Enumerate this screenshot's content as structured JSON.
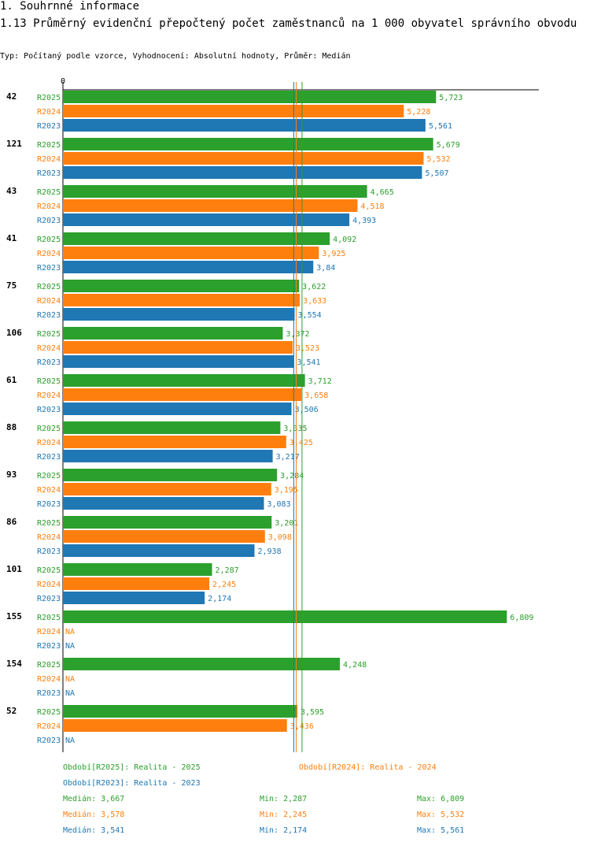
{
  "header": {
    "section": "1. Souhrnné informace",
    "title": "1.13 Průměrný evidenční přepočtený počet zaměstnanců na 1 000 obyvatel správního obvodu",
    "subtitle": "Typ: Počítaný podle vzorce, Vyhodnocení: Absolutní hodnoty, Průměr: Medián"
  },
  "chart_data": {
    "type": "bar",
    "orientation": "horizontal",
    "axis_zero_label": "0",
    "xlim": [
      0,
      7.3
    ],
    "categories": [
      "42",
      "121",
      "43",
      "41",
      "75",
      "106",
      "61",
      "88",
      "93",
      "86",
      "101",
      "155",
      "154",
      "52"
    ],
    "missing_label": "NA",
    "series": [
      {
        "name": "R2025",
        "color": "#2ca02c",
        "values": [
          5.723,
          5.679,
          4.665,
          4.092,
          3.622,
          3.372,
          3.712,
          3.335,
          3.284,
          3.201,
          2.287,
          6.809,
          4.248,
          3.595
        ],
        "labels": [
          "5,723",
          "5,679",
          "4,665",
          "4,092",
          "3,622",
          "3,372",
          "3,712",
          "3,335",
          "3,284",
          "3,201",
          "2,287",
          "6,809",
          "4,248",
          "3,595"
        ]
      },
      {
        "name": "R2024",
        "color": "#ff7f0e",
        "values": [
          5.228,
          5.532,
          4.518,
          3.925,
          3.633,
          3.523,
          3.658,
          3.425,
          3.195,
          3.098,
          2.245,
          null,
          null,
          3.436
        ],
        "labels": [
          "5,228",
          "5,532",
          "4,518",
          "3,925",
          "3,633",
          "3,523",
          "3,658",
          "3,425",
          "3,195",
          "3,098",
          "2,245",
          "NA",
          "NA",
          "3,436"
        ]
      },
      {
        "name": "R2023",
        "color": "#1f77b4",
        "values": [
          5.561,
          5.507,
          4.393,
          3.84,
          3.554,
          3.541,
          3.506,
          3.217,
          3.083,
          2.938,
          2.174,
          null,
          null,
          null
        ],
        "labels": [
          "5,561",
          "5,507",
          "4,393",
          "3,84",
          "3,554",
          "3,541",
          "3,506",
          "3,217",
          "3,083",
          "2,938",
          "2,174",
          "NA",
          "NA",
          "NA"
        ]
      }
    ],
    "median_lines": [
      {
        "series": "R2025",
        "value": 3.667
      },
      {
        "series": "R2024",
        "value": 3.578
      },
      {
        "series": "R2023",
        "value": 3.541
      }
    ]
  },
  "legend": {
    "items": [
      {
        "text": "Období[R2025]: Realita - 2025",
        "color": "#2ca02c"
      },
      {
        "text": "Období[R2024]: Realita - 2024",
        "color": "#ff7f0e"
      },
      {
        "text": "Období[R2023]: Realita - 2023",
        "color": "#1f77b4"
      }
    ],
    "stats": [
      {
        "median": "Medián: 3,667",
        "min": "Min: 2,287",
        "max": "Max: 6,809",
        "color": "#2ca02c"
      },
      {
        "median": "Medián: 3,578",
        "min": "Min: 2,245",
        "max": "Max: 5,532",
        "color": "#ff7f0e"
      },
      {
        "median": "Medián: 3,541",
        "min": "Min: 2,174",
        "max": "Max: 5,561",
        "color": "#1f77b4"
      }
    ]
  }
}
